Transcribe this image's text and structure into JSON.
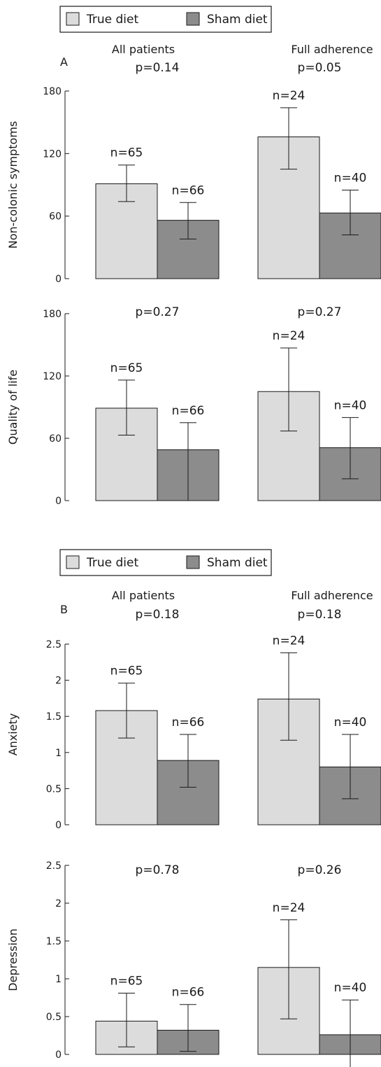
{
  "legend": {
    "true_label": "True diet",
    "sham_label": "Sham diet"
  },
  "groups": {
    "all": "All patients",
    "full": "Full adherence"
  },
  "panel_letters": [
    "A",
    "B"
  ],
  "colors": {
    "true_diet": "#dcdcdc",
    "sham_diet": "#8c8c8c",
    "axis": "#1a1a1a"
  },
  "chart_data": [
    {
      "type": "bar",
      "panel": "A",
      "ylabel": "Non-colonic symptoms",
      "ylim": [
        0,
        180
      ],
      "yticks": [
        "0",
        "60",
        "120",
        "180"
      ],
      "categories": [
        "All patients",
        "Full adherence"
      ],
      "p_values": [
        "p=0.14",
        "p=0.05"
      ],
      "series": [
        {
          "name": "True diet",
          "values": [
            91,
            136
          ],
          "err_low": [
            74,
            105
          ],
          "err_high": [
            109,
            164
          ],
          "n_labels": [
            "n=65",
            "n=24"
          ]
        },
        {
          "name": "Sham diet",
          "values": [
            56,
            63
          ],
          "err_low": [
            38,
            42
          ],
          "err_high": [
            73,
            85
          ],
          "n_labels": [
            "n=66",
            "n=40"
          ]
        }
      ]
    },
    {
      "type": "bar",
      "panel": "A",
      "ylabel": "Quality of life",
      "ylim": [
        0,
        180
      ],
      "yticks": [
        "0",
        "60",
        "120",
        "180"
      ],
      "categories": [
        "All patients",
        "Full adherence"
      ],
      "p_values": [
        "p=0.27",
        "p=0.27"
      ],
      "series": [
        {
          "name": "True diet",
          "values": [
            89,
            105
          ],
          "err_low": [
            63,
            67
          ],
          "err_high": [
            116,
            147
          ],
          "n_labels": [
            "n=65",
            "n=24"
          ]
        },
        {
          "name": "Sham diet",
          "values": [
            49,
            51
          ],
          "err_low": [
            0,
            21
          ],
          "err_high": [
            75,
            80
          ],
          "n_labels": [
            "n=66",
            "n=40"
          ]
        }
      ]
    },
    {
      "type": "bar",
      "panel": "B",
      "ylabel": "Anxiety",
      "ylim": [
        0,
        2.5
      ],
      "yticks": [
        "0",
        "0.5",
        "1",
        "1.5",
        "2",
        "2.5"
      ],
      "categories": [
        "All patients",
        "Full adherence"
      ],
      "p_values": [
        "p=0.18",
        "p=0.18"
      ],
      "series": [
        {
          "name": "True diet",
          "values": [
            1.58,
            1.74
          ],
          "err_low": [
            1.2,
            1.17
          ],
          "err_high": [
            1.96,
            2.38
          ],
          "n_labels": [
            "n=65",
            "n=24"
          ]
        },
        {
          "name": "Sham diet",
          "values": [
            0.89,
            0.8
          ],
          "err_low": [
            0.52,
            0.36
          ],
          "err_high": [
            1.25,
            1.25
          ],
          "n_labels": [
            "n=66",
            "n=40"
          ]
        }
      ]
    },
    {
      "type": "bar",
      "panel": "B",
      "ylabel": "Depression",
      "ylim": [
        0,
        2.5
      ],
      "yticks": [
        "0",
        "0.5",
        "1",
        "1.5",
        "2",
        "2.5"
      ],
      "categories": [
        "All patients",
        "Full adherence"
      ],
      "p_values": [
        "p=0.78",
        "p=0.26"
      ],
      "series": [
        {
          "name": "True diet",
          "values": [
            0.44,
            1.15
          ],
          "err_low": [
            0.1,
            0.47
          ],
          "err_high": [
            0.81,
            1.78
          ],
          "n_labels": [
            "n=65",
            "n=24"
          ]
        },
        {
          "name": "Sham diet",
          "values": [
            0.32,
            0.26
          ],
          "err_low": [
            0.04,
            -0.2
          ],
          "err_high": [
            0.66,
            0.72
          ],
          "n_labels": [
            "n=66",
            "n=40"
          ]
        }
      ]
    }
  ]
}
